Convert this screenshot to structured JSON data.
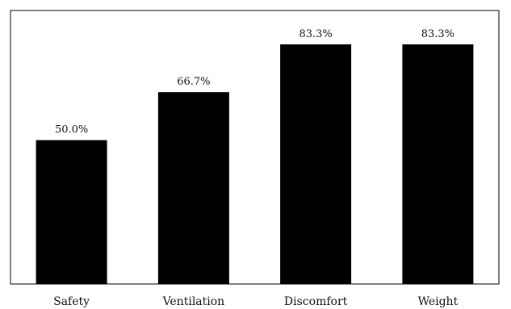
{
  "chart_data": {
    "type": "bar",
    "categories": [
      "Safety",
      "Ventilation",
      "Discomfort",
      "Weight"
    ],
    "values": [
      50.0,
      66.7,
      83.3,
      83.3
    ],
    "data_labels": [
      "50.0%",
      "66.7%",
      "83.3%",
      "83.3%"
    ],
    "ylim": [
      0,
      100
    ],
    "grid": false,
    "legend": "none",
    "bar_color": "#000000",
    "frame_color": "#000000"
  }
}
